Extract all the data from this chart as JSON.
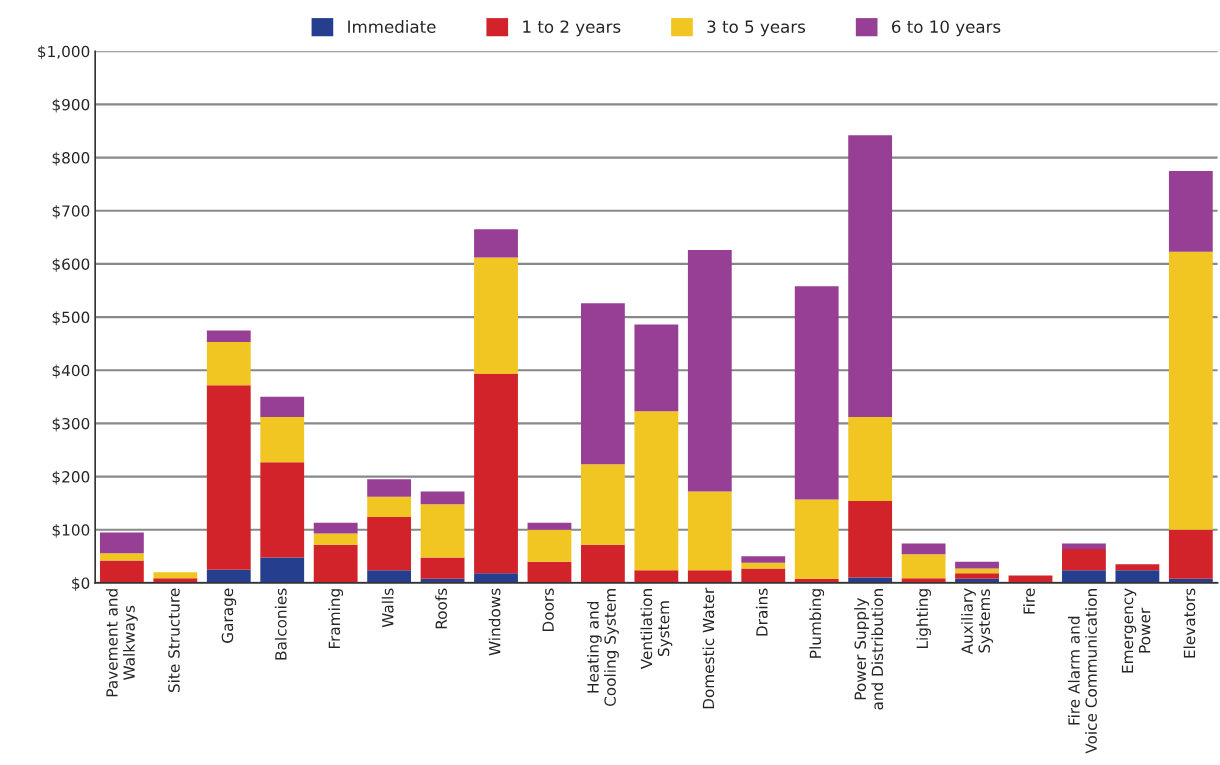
{
  "chart_data": {
    "type": "bar",
    "stacked": true,
    "grid": "y",
    "legend": "top",
    "categories": [
      "Pavement and\nWalkways",
      "Site Structure",
      "Garage",
      "Balconies",
      "Framing",
      "Walls",
      "Roofs",
      "Windows",
      "Doors",
      "Heating and\nCooling System",
      "Ventilation\nSystem",
      "Domestic Water",
      "Drains",
      "Plumbing",
      "Power Supply\nand Distribution",
      "Lighting",
      "Auxiliary\nSystems",
      "Fire",
      "Fire Alarm and\nVoice Communication",
      "Emergency\nPower",
      "Elevators"
    ],
    "series": [
      {
        "name": "Immediate",
        "color": "#253f8e",
        "values": [
          0,
          null,
          25,
          48,
          0,
          24,
          8,
          18,
          0,
          0,
          0,
          0,
          0,
          0,
          10,
          0,
          8,
          0,
          24,
          24,
          8
        ]
      },
      {
        "name": "1 to 2 years",
        "color": "#d2232a",
        "values": [
          42,
          9,
          347,
          179,
          72,
          100,
          40,
          375,
          40,
          72,
          24,
          24,
          27,
          8,
          144,
          9,
          10,
          14,
          40,
          11,
          92
        ]
      },
      {
        "name": "3 to 5 years",
        "color": "#f1c623",
        "values": [
          14,
          11,
          81,
          85,
          21,
          38,
          100,
          219,
          60,
          151,
          299,
          148,
          11,
          149,
          158,
          45,
          9,
          0,
          0,
          0,
          523
        ]
      },
      {
        "name": "6 to 10 years",
        "color": "#963f94",
        "values": [
          39,
          0,
          22,
          38,
          20,
          33,
          24,
          53,
          13,
          303,
          163,
          454,
          12,
          401,
          530,
          20,
          13,
          0,
          10,
          0,
          152
        ]
      }
    ],
    "ylim": [
      0,
      1000
    ],
    "yticks": [
      {
        "value": 0,
        "label": "$0"
      },
      {
        "value": 100,
        "label": "$100"
      },
      {
        "value": 200,
        "label": "$200"
      },
      {
        "value": 300,
        "label": "$300"
      },
      {
        "value": 400,
        "label": "$400"
      },
      {
        "value": 500,
        "label": "$500"
      },
      {
        "value": 600,
        "label": "$600"
      },
      {
        "value": 700,
        "label": "$700"
      },
      {
        "value": 800,
        "label": "$800"
      },
      {
        "value": 900,
        "label": "$900"
      },
      {
        "value": 1000,
        "label": "$1,000"
      }
    ]
  }
}
